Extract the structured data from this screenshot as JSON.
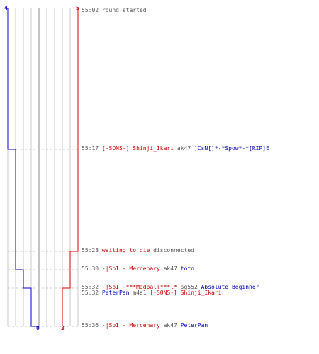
{
  "scoreboard": {
    "start_counts": {
      "blue": "4",
      "red": "5"
    },
    "end_counts": {
      "blue": "0",
      "red": "3"
    },
    "colors": {
      "blue": "#0000cc",
      "red": "#dd0000",
      "grid": "#c9c9c9",
      "text": "#555555"
    }
  },
  "events": [
    {
      "time": "55:02",
      "parts": [
        {
          "text": "round started",
          "team": "gray"
        }
      ]
    },
    {
      "time": "55:17",
      "parts": [
        {
          "text": "[-SONS-] Shinji_Ikari",
          "team": "red"
        },
        {
          "text": " ak47 ",
          "team": "gray"
        },
        {
          "text": "]CsN[]*-*Spow*-*[RIP]E",
          "team": "blue"
        }
      ]
    },
    {
      "time": "55:28",
      "parts": [
        {
          "text": "waiting to die",
          "team": "red"
        },
        {
          "text": " disconnected",
          "team": "gray"
        }
      ]
    },
    {
      "time": "55:30",
      "parts": [
        {
          "text": "-|SoI|- Mercenary",
          "team": "red"
        },
        {
          "text": " ak47 ",
          "team": "gray"
        },
        {
          "text": "toto",
          "team": "blue"
        }
      ]
    },
    {
      "time": "55:32",
      "parts": [
        {
          "text": "-|SoI|-***Madball***l*",
          "team": "red"
        },
        {
          "text": " sg552 ",
          "team": "gray"
        },
        {
          "text": "Absolute Beginner",
          "team": "blue"
        }
      ]
    },
    {
      "time": "55:32",
      "parts": [
        {
          "text": "PeterPan",
          "team": "blue"
        },
        {
          "text": " m4a1 ",
          "team": "gray"
        },
        {
          "text": "[-SONS-] Shinji_Ikari",
          "team": "red"
        }
      ]
    },
    {
      "time": "55:36",
      "parts": [
        {
          "text": "-|SoI|- Mercenary",
          "team": "red"
        },
        {
          "text": " ak47 ",
          "team": "gray"
        },
        {
          "text": "PeterPan",
          "team": "blue"
        }
      ]
    }
  ]
}
